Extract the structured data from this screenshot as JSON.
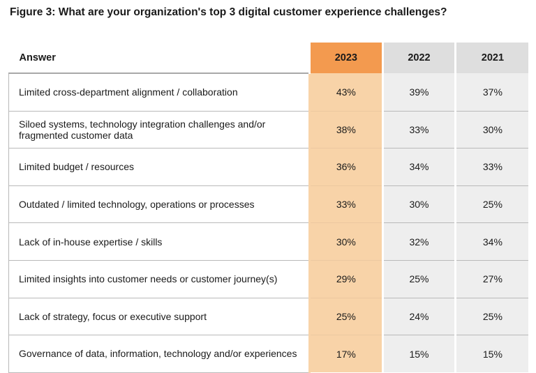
{
  "chart_data": {
    "type": "table",
    "title": "Figure 3:  What are your organization's top 3 digital customer experience challenges?",
    "columns": [
      "Answer",
      "2023",
      "2022",
      "2021"
    ],
    "rows": [
      {
        "answer": "Limited cross-department alignment / collaboration",
        "values": [
          "43%",
          "39%",
          "37%"
        ]
      },
      {
        "answer": "Siloed systems, technology integration challenges and/or fragmented customer data",
        "values": [
          "38%",
          "33%",
          "30%"
        ]
      },
      {
        "answer": "Limited budget / resources",
        "values": [
          "36%",
          "34%",
          "33%"
        ]
      },
      {
        "answer": "Outdated / limited technology, operations or processes",
        "values": [
          "33%",
          "30%",
          "25%"
        ]
      },
      {
        "answer": "Lack of in-house expertise / skills",
        "values": [
          "30%",
          "32%",
          "34%"
        ]
      },
      {
        "answer": "Limited insights into customer needs or customer journey(s)",
        "values": [
          "29%",
          "25%",
          "27%"
        ]
      },
      {
        "answer": "Lack of strategy, focus or executive support",
        "values": [
          "25%",
          "24%",
          "25%"
        ]
      },
      {
        "answer": "Governance of data, information, technology and/or experiences",
        "values": [
          "17%",
          "15%",
          "15%"
        ]
      }
    ],
    "highlight_column": "2023",
    "colors": {
      "highlight_header": "#f39a4f",
      "highlight_cells": "#f8d3a8",
      "header": "#dedede",
      "cells": "#eeeeee"
    }
  }
}
